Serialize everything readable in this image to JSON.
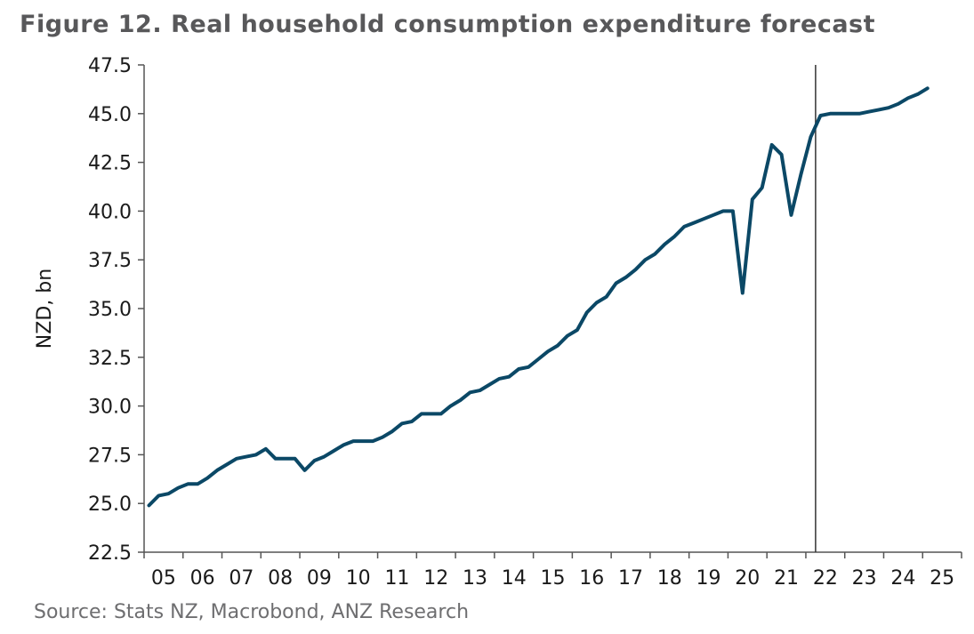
{
  "figure": {
    "number": "Figure 12.",
    "title": "Real household consumption expenditure forecast",
    "source": "Source: Stats NZ, Macrobond, ANZ Research"
  },
  "colors": {
    "series": "#0b4866",
    "axis": "#555555",
    "divider": "#333333",
    "title": "#58585a"
  },
  "chart_data": {
    "type": "line",
    "title": "Figure 12. Real household consumption expenditure forecast",
    "xlabel": "",
    "ylabel": "NZD, bn",
    "ylim": [
      22.5,
      47.5
    ],
    "yticks": [
      "22.5",
      "25.0",
      "27.5",
      "30.0",
      "32.5",
      "35.0",
      "37.5",
      "40.0",
      "42.5",
      "45.0",
      "47.5"
    ],
    "ytick_values": [
      22.5,
      25.0,
      27.5,
      30.0,
      32.5,
      35.0,
      37.5,
      40.0,
      42.5,
      45.0,
      47.5
    ],
    "xlim": [
      2005,
      2026
    ],
    "xtick_labels": [
      "05",
      "06",
      "07",
      "08",
      "09",
      "10",
      "11",
      "12",
      "13",
      "14",
      "15",
      "16",
      "17",
      "18",
      "19",
      "20",
      "21",
      "22",
      "23",
      "24",
      "25"
    ],
    "grid": false,
    "legend": "none",
    "forecast_divider_x": 2022.25,
    "frequency": "quarterly",
    "series": [
      {
        "name": "Real household consumption expenditure",
        "start": "2005Q1",
        "values": [
          24.9,
          25.4,
          25.5,
          25.8,
          26.0,
          26.0,
          26.3,
          26.7,
          27.0,
          27.3,
          27.4,
          27.5,
          27.8,
          27.3,
          27.3,
          27.3,
          26.7,
          27.2,
          27.4,
          27.7,
          28.0,
          28.2,
          28.2,
          28.2,
          28.4,
          28.7,
          29.1,
          29.2,
          29.6,
          29.6,
          29.6,
          30.0,
          30.3,
          30.7,
          30.8,
          31.1,
          31.4,
          31.5,
          31.9,
          32.0,
          32.4,
          32.8,
          33.1,
          33.6,
          33.9,
          34.8,
          35.3,
          35.6,
          36.3,
          36.6,
          37.0,
          37.5,
          37.8,
          38.3,
          38.7,
          39.2,
          39.4,
          39.6,
          39.8,
          40.0,
          40.0,
          35.8,
          40.6,
          41.2,
          43.4,
          42.9,
          39.8,
          41.9,
          43.8,
          44.9,
          45.0,
          45.0,
          45.0,
          45.0,
          45.1,
          45.2,
          45.3,
          45.5,
          45.8,
          46.0,
          46.3
        ]
      }
    ]
  }
}
